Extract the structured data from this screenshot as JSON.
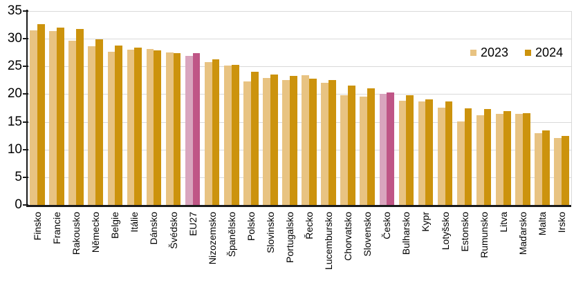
{
  "chart_data": {
    "type": "bar",
    "title": "",
    "xlabel": "",
    "ylabel": "",
    "ylim": [
      0,
      35
    ],
    "yticks": [
      0,
      5,
      10,
      15,
      20,
      25,
      30,
      35
    ],
    "grid": true,
    "legend_position": "top-right",
    "categories": [
      "Finsko",
      "Francie",
      "Rakousko",
      "Německo",
      "Belgie",
      "Itálie",
      "Dánsko",
      "Švédsko",
      "EU27",
      "Nizozemsko",
      "Španělsko",
      "Polsko",
      "Slovinsko",
      "Portugalsko",
      "Řecko",
      "Lucembursko",
      "Chorvatsko",
      "Slovensko",
      "Česko",
      "Bulharsko",
      "Kypr",
      "Lotyšsko",
      "Estonsko",
      "Rumunsko",
      "Litva",
      "Maďarsko",
      "Malta",
      "Irsko"
    ],
    "series": [
      {
        "name": "2023",
        "values": [
          31.5,
          31.4,
          29.7,
          28.7,
          27.6,
          28.0,
          28.1,
          27.5,
          26.9,
          25.8,
          25.1,
          22.3,
          22.9,
          22.6,
          23.4,
          22.0,
          19.8,
          19.6,
          20.0,
          18.8,
          18.7,
          17.6,
          15.1,
          16.2,
          16.5,
          16.5,
          13.0,
          12.1
        ]
      },
      {
        "name": "2024",
        "values": [
          32.6,
          32.0,
          31.8,
          29.9,
          28.8,
          28.4,
          27.9,
          27.4,
          27.4,
          26.3,
          25.3,
          24.0,
          23.5,
          23.3,
          22.8,
          22.6,
          21.6,
          21.1,
          20.3,
          19.8,
          19.1,
          18.7,
          17.4,
          17.3,
          16.9,
          16.6,
          13.4,
          12.4
        ]
      }
    ],
    "highlighted_categories": [
      "EU27",
      "Česko"
    ],
    "colors": {
      "series_2023": "#e8c382",
      "series_2024": "#cc930d",
      "highlight_2023": "#d9a5be",
      "highlight_2024": "#bf5586",
      "gridline": "#d9d9d9",
      "axis": "#1a1a1a",
      "text": "#000000",
      "background": "#ffffff"
    }
  }
}
